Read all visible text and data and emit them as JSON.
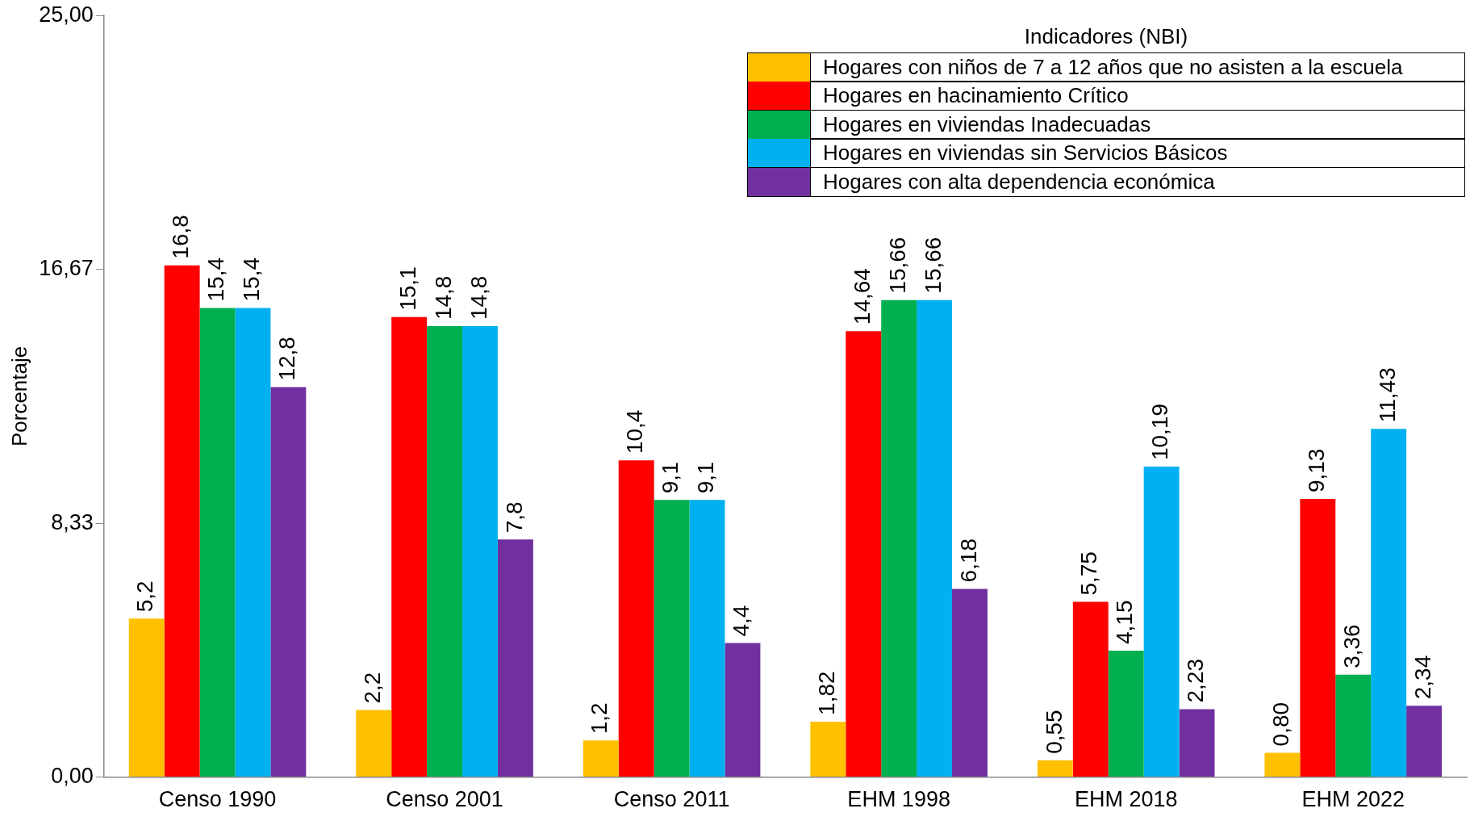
{
  "chart_data": {
    "type": "bar",
    "ylabel": "Porcentaje",
    "legend_title": "Indicadores (NBI)",
    "legend": "top right",
    "grid": false,
    "categories": [
      "Censo 1990",
      "Censo 2001",
      "Censo 2011",
      "EHM 1998",
      "EHM 2018",
      "EHM 2022"
    ],
    "ylim": [
      0,
      25
    ],
    "yticks": [
      {
        "value": 0,
        "label": "0,00"
      },
      {
        "value": 8.33,
        "label": "8,33"
      },
      {
        "value": 16.67,
        "label": "16,67"
      },
      {
        "value": 25,
        "label": "25,00"
      }
    ],
    "series": [
      {
        "name": "Hogares con niños de 7 a 12 años que no asisten a la escuela",
        "color": "#ffc000",
        "values": [
          5.2,
          2.2,
          1.2,
          1.82,
          0.55,
          0.8
        ],
        "value_labels": [
          "5,2",
          "2,2",
          "1,2",
          "1,82",
          "0,55",
          "0,80"
        ]
      },
      {
        "name": "Hogares en hacinamiento Crítico",
        "color": "#ff0000",
        "values": [
          16.8,
          15.1,
          10.4,
          14.64,
          5.75,
          9.13
        ],
        "value_labels": [
          "16,8",
          "15,1",
          "10,4",
          "14,64",
          "5,75",
          "9,13"
        ]
      },
      {
        "name": "Hogares en viviendas Inadecuadas",
        "color": "#00b050",
        "values": [
          15.4,
          14.8,
          9.1,
          15.66,
          4.15,
          3.36
        ],
        "value_labels": [
          "15,4",
          "14,8",
          "9,1",
          "15,66",
          "4,15",
          "3,36"
        ]
      },
      {
        "name": "Hogares en viviendas sin Servicios Básicos",
        "color": "#00b0f0",
        "values": [
          15.4,
          14.8,
          9.1,
          15.66,
          10.19,
          11.43
        ],
        "value_labels": [
          "15,4",
          "14,8",
          "9,1",
          "15,66",
          "10,19",
          "11,43"
        ]
      },
      {
        "name": "Hogares con alta dependencia económica",
        "color": "#7030a0",
        "values": [
          12.8,
          7.8,
          4.4,
          6.18,
          2.23,
          2.34
        ],
        "value_labels": [
          "12,8",
          "7,8",
          "4,4",
          "6,18",
          "2,23",
          "2,34"
        ]
      }
    ]
  }
}
